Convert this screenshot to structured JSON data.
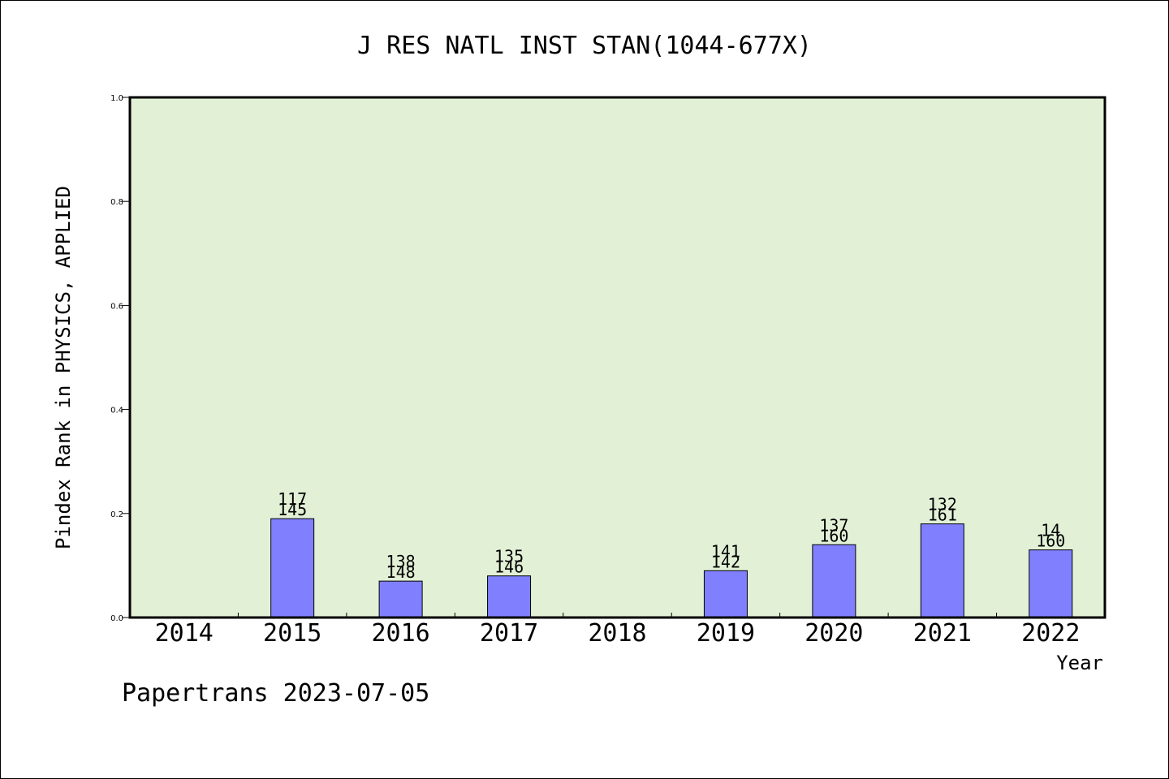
{
  "chart_data": {
    "type": "bar",
    "title": "J RES NATL INST STAN(1044-677X)",
    "xlabel": "Year",
    "ylabel": "Pindex Rank in PHYSICS, APPLIED",
    "footer": "Papertrans 2023-07-05",
    "ylim": [
      0,
      1.0
    ],
    "yticks": [
      "0.0",
      "0.2",
      "0.4",
      "0.6",
      "0.8",
      "1.0"
    ],
    "grid": false,
    "categories": [
      "2014",
      "2015",
      "2016",
      "2017",
      "2018",
      "2019",
      "2020",
      "2021",
      "2022"
    ],
    "values": [
      null,
      0.19,
      0.07,
      0.08,
      null,
      0.09,
      0.14,
      0.18,
      0.13
    ],
    "labels_top": [
      null,
      "117",
      "138",
      "135",
      null,
      "141",
      "137",
      "132",
      "14"
    ],
    "labels_bottom": [
      null,
      "145",
      "148",
      "146",
      null,
      "142",
      "160",
      "161",
      "160"
    ],
    "colors": {
      "plot_bg": "#e2f0d6",
      "bar": "#8080ff"
    }
  }
}
